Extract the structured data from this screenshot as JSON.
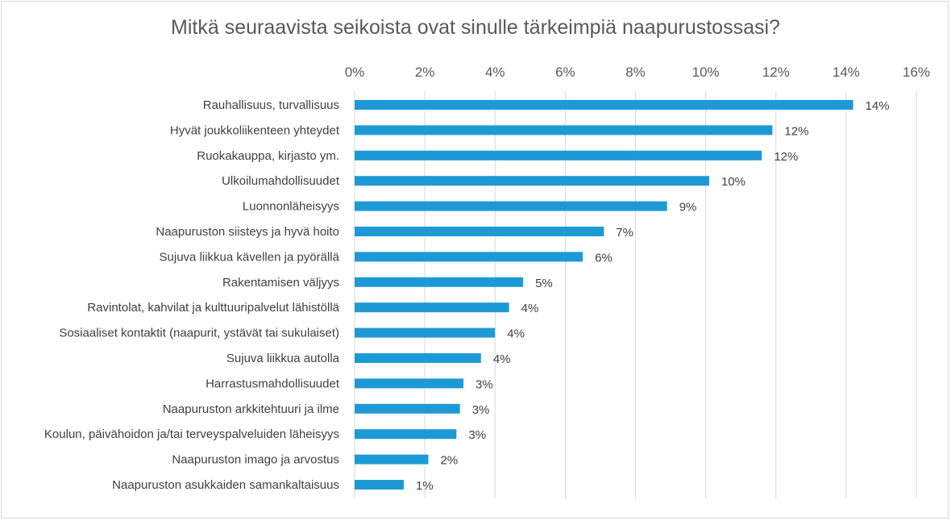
{
  "chart_data": {
    "type": "bar",
    "orientation": "horizontal",
    "title": "Mitkä seuraavista seikoista ovat sinulle tärkeimpiä naapurustossasi?",
    "xlim": [
      0,
      16
    ],
    "x_ticks": [
      "0%",
      "2%",
      "4%",
      "6%",
      "8%",
      "10%",
      "12%",
      "14%",
      "16%"
    ],
    "x_tick_values": [
      0,
      2,
      4,
      6,
      8,
      10,
      12,
      14,
      16
    ],
    "axis_position": "top",
    "grid": true,
    "bar_color": "#1d9ad6",
    "categories": [
      "Rauhallisuus, turvallisuus",
      "Hyvät joukkoliikenteen yhteydet",
      "Ruokakauppa, kirjasto ym.",
      "Ulkoilumahdollisuudet",
      "Luonnonläheisyys",
      "Naapuruston siisteys ja hyvä hoito",
      "Sujuva liikkua kävellen ja pyörällä",
      "Rakentamisen väljyys",
      "Ravintolat, kahvilat ja kulttuuripalvelut lähistöllä",
      "Sosiaaliset kontaktit (naapurit, ystävät tai sukulaiset)",
      "Sujuva liikkua autolla",
      "Harrastusmahdollisuudet",
      "Naapuruston arkkitehtuuri ja ilme",
      "Koulun, päivähoidon ja/tai terveyspalveluiden läheisyys",
      "Naapuruston imago ja arvostus",
      "Naapuruston asukkaiden samankaltaisuus"
    ],
    "values": [
      14.2,
      11.9,
      11.6,
      10.1,
      8.9,
      7.1,
      6.5,
      4.8,
      4.4,
      4.0,
      3.6,
      3.1,
      3.0,
      2.9,
      2.1,
      1.4
    ],
    "data_labels": [
      "14%",
      "12%",
      "12%",
      "10%",
      "9%",
      "7%",
      "6%",
      "5%",
      "4%",
      "4%",
      "4%",
      "3%",
      "3%",
      "3%",
      "2%",
      "1%"
    ]
  }
}
